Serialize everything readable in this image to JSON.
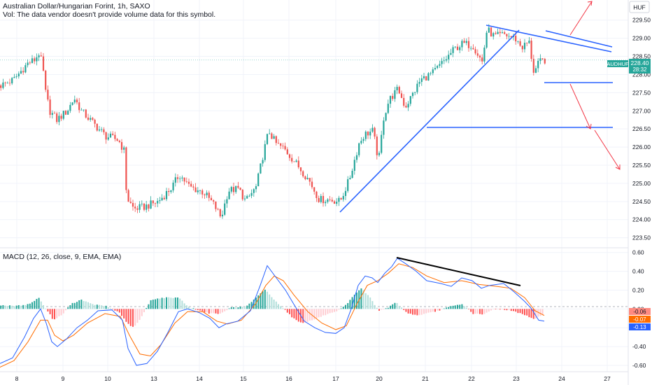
{
  "header": {
    "title": "Australian Dollar/Hungarian Forint, 1h, SAXO",
    "vol_note": "Vol: The data vendor doesn't provide volume data for this symbol."
  },
  "currency_button": "HUF",
  "price_badge": {
    "symbol": "AUDHUF",
    "price": "228.40",
    "countdown": "28:32"
  },
  "indicator_label": "MACD (12, 26, close, 9, EMA, EMA)",
  "macd_badges": [
    "-0.06",
    "-0.07",
    "-0.13"
  ],
  "colors": {
    "up": "#26a69a",
    "down": "#ef5350",
    "drawing": "#2962ff",
    "macd": "#2962ff",
    "signal": "#ff6d00",
    "hist_up_strong": "#26a69a",
    "hist_up_weak": "#b2dfdb",
    "hist_down_strong": "#ff5252",
    "hist_down_weak": "#ffcdd2",
    "divergence": "#000000"
  },
  "chart_data": [
    {
      "type": "candlestick",
      "title": "Australian Dollar/Hungarian Forint, 1h, SAXO",
      "x_ticks": [
        "8",
        "9",
        "10",
        "13",
        "14",
        "15",
        "16",
        "17",
        "20",
        "21",
        "22",
        "23",
        "24",
        "27"
      ],
      "y_ticks": [
        "223.50",
        "224.00",
        "224.50",
        "225.00",
        "225.50",
        "226.00",
        "226.50",
        "227.00",
        "227.50",
        "228.00",
        "228.50",
        "229.00",
        "229.50"
      ],
      "ylim": [
        223.3,
        229.9
      ],
      "last_price": 228.4,
      "close_path": [
        [
          0,
          227.7
        ],
        [
          18,
          227.85
        ],
        [
          38,
          228.3
        ],
        [
          48,
          228.4
        ],
        [
          55,
          228.6
        ],
        [
          60,
          228.2
        ],
        [
          64,
          227.5
        ],
        [
          70,
          227.0
        ],
        [
          80,
          226.75
        ],
        [
          95,
          227.0
        ],
        [
          105,
          227.35
        ],
        [
          115,
          227.0
        ],
        [
          130,
          226.7
        ],
        [
          150,
          226.3
        ],
        [
          168,
          226.2
        ],
        [
          176,
          225.9
        ],
        [
          180,
          224.6
        ],
        [
          190,
          224.3
        ],
        [
          205,
          224.35
        ],
        [
          225,
          224.5
        ],
        [
          245,
          224.9
        ],
        [
          255,
          225.25
        ],
        [
          270,
          224.9
        ],
        [
          290,
          224.75
        ],
        [
          305,
          224.4
        ],
        [
          315,
          224.05
        ],
        [
          325,
          224.8
        ],
        [
          340,
          224.85
        ],
        [
          350,
          224.5
        ],
        [
          365,
          224.9
        ],
        [
          375,
          225.8
        ],
        [
          383,
          226.45
        ],
        [
          393,
          226.1
        ],
        [
          405,
          225.95
        ],
        [
          420,
          225.6
        ],
        [
          440,
          225.1
        ],
        [
          455,
          224.55
        ],
        [
          470,
          224.55
        ],
        [
          485,
          224.5
        ],
        [
          498,
          225.1
        ],
        [
          505,
          225.6
        ],
        [
          512,
          226.1
        ],
        [
          520,
          226.35
        ],
        [
          532,
          226.45
        ],
        [
          540,
          225.6
        ],
        [
          547,
          226.8
        ],
        [
          555,
          227.3
        ],
        [
          568,
          227.6
        ],
        [
          578,
          227.1
        ],
        [
          590,
          227.5
        ],
        [
          600,
          227.85
        ],
        [
          618,
          228.05
        ],
        [
          635,
          228.4
        ],
        [
          648,
          228.7
        ],
        [
          660,
          228.85
        ],
        [
          675,
          228.8
        ],
        [
          688,
          228.35
        ],
        [
          695,
          229.25
        ],
        [
          705,
          229.05
        ],
        [
          720,
          229.1
        ],
        [
          735,
          229.0
        ],
        [
          745,
          228.75
        ],
        [
          755,
          228.9
        ],
        [
          762,
          228.05
        ],
        [
          770,
          228.35
        ],
        [
          778,
          228.4
        ]
      ]
    },
    {
      "type": "line",
      "title": "MACD (12, 26, close, 9, EMA, EMA)",
      "y_ticks": [
        "0.60",
        "0.40",
        "0.20",
        "0.00",
        "-0.20",
        "-0.40",
        "-0.60"
      ],
      "ylim": [
        -0.66,
        0.62
      ],
      "series": [
        {
          "points": [
            [
              0,
              -0.58
            ],
            [
              18,
              -0.52
            ],
            [
              35,
              -0.3
            ],
            [
              48,
              -0.1
            ],
            [
              58,
              0.0
            ],
            [
              66,
              -0.15
            ],
            [
              74,
              -0.35
            ],
            [
              82,
              -0.4
            ],
            [
              95,
              -0.32
            ],
            [
              110,
              -0.2
            ],
            [
              125,
              -0.12
            ],
            [
              140,
              -0.02
            ],
            [
              160,
              -0.01
            ],
            [
              175,
              -0.12
            ],
            [
              183,
              -0.42
            ],
            [
              195,
              -0.6
            ],
            [
              210,
              -0.58
            ],
            [
              225,
              -0.45
            ],
            [
              240,
              -0.25
            ],
            [
              255,
              -0.03
            ],
            [
              268,
              0.0
            ],
            [
              285,
              -0.04
            ],
            [
              300,
              -0.1
            ],
            [
              313,
              -0.2
            ],
            [
              323,
              -0.16
            ],
            [
              340,
              -0.13
            ],
            [
              358,
              -0.02
            ],
            [
              372,
              0.25
            ],
            [
              382,
              0.46
            ],
            [
              395,
              0.33
            ],
            [
              408,
              0.2
            ],
            [
              420,
              0.05
            ],
            [
              435,
              -0.13
            ],
            [
              450,
              -0.2
            ],
            [
              465,
              -0.25
            ],
            [
              480,
              -0.26
            ],
            [
              492,
              -0.2
            ],
            [
              502,
              0.0
            ],
            [
              512,
              0.25
            ],
            [
              522,
              0.35
            ],
            [
              532,
              0.33
            ],
            [
              540,
              0.28
            ],
            [
              550,
              0.38
            ],
            [
              560,
              0.45
            ],
            [
              568,
              0.54
            ],
            [
              580,
              0.48
            ],
            [
              595,
              0.4
            ],
            [
              610,
              0.3
            ],
            [
              630,
              0.27
            ],
            [
              645,
              0.24
            ],
            [
              660,
              0.33
            ],
            [
              675,
              0.3
            ],
            [
              688,
              0.22
            ],
            [
              700,
              0.25
            ],
            [
              720,
              0.27
            ],
            [
              735,
              0.18
            ],
            [
              750,
              0.08
            ],
            [
              760,
              0.0
            ],
            [
              770,
              -0.12
            ],
            [
              778,
              -0.13
            ]
          ]
        },
        {
          "points": [
            [
              0,
              -0.62
            ],
            [
              20,
              -0.55
            ],
            [
              40,
              -0.35
            ],
            [
              58,
              -0.12
            ],
            [
              68,
              -0.12
            ],
            [
              78,
              -0.28
            ],
            [
              90,
              -0.34
            ],
            [
              105,
              -0.28
            ],
            [
              125,
              -0.15
            ],
            [
              150,
              -0.05
            ],
            [
              172,
              -0.08
            ],
            [
              185,
              -0.28
            ],
            [
              200,
              -0.48
            ],
            [
              215,
              -0.5
            ],
            [
              230,
              -0.38
            ],
            [
              250,
              -0.15
            ],
            [
              268,
              -0.03
            ],
            [
              290,
              -0.03
            ],
            [
              310,
              -0.13
            ],
            [
              325,
              -0.16
            ],
            [
              345,
              -0.12
            ],
            [
              365,
              0.05
            ],
            [
              380,
              0.25
            ],
            [
              392,
              0.35
            ],
            [
              405,
              0.3
            ],
            [
              420,
              0.15
            ],
            [
              440,
              -0.03
            ],
            [
              460,
              -0.15
            ],
            [
              480,
              -0.22
            ],
            [
              495,
              -0.18
            ],
            [
              510,
              0.05
            ],
            [
              525,
              0.25
            ],
            [
              540,
              0.3
            ],
            [
              555,
              0.38
            ],
            [
              570,
              0.48
            ],
            [
              590,
              0.44
            ],
            [
              610,
              0.35
            ],
            [
              635,
              0.28
            ],
            [
              660,
              0.3
            ],
            [
              685,
              0.26
            ],
            [
              710,
              0.24
            ],
            [
              730,
              0.22
            ],
            [
              750,
              0.12
            ],
            [
              765,
              -0.02
            ],
            [
              778,
              -0.07
            ]
          ]
        }
      ],
      "histogram": [
        [
          0,
          0.04
        ],
        [
          20,
          0.03
        ],
        [
          40,
          0.05
        ],
        [
          55,
          0.12
        ],
        [
          63,
          0.01
        ],
        [
          68,
          -0.03
        ],
        [
          75,
          -0.12
        ],
        [
          88,
          -0.06
        ],
        [
          100,
          0.05
        ],
        [
          115,
          0.1
        ],
        [
          130,
          0.05
        ],
        [
          150,
          0.03
        ],
        [
          170,
          -0.04
        ],
        [
          180,
          -0.15
        ],
        [
          190,
          -0.2
        ],
        [
          200,
          -0.1
        ],
        [
          215,
          0.1
        ],
        [
          235,
          0.12
        ],
        [
          255,
          0.12
        ],
        [
          268,
          0.02
        ],
        [
          285,
          -0.02
        ],
        [
          300,
          -0.05
        ],
        [
          315,
          -0.05
        ],
        [
          330,
          0.02
        ],
        [
          350,
          0.02
        ],
        [
          365,
          0.12
        ],
        [
          378,
          0.21
        ],
        [
          390,
          0.1
        ],
        [
          405,
          0.0
        ],
        [
          418,
          -0.1
        ],
        [
          430,
          -0.15
        ],
        [
          445,
          -0.12
        ],
        [
          465,
          -0.06
        ],
        [
          480,
          -0.03
        ],
        [
          495,
          0.05
        ],
        [
          505,
          0.15
        ],
        [
          515,
          0.22
        ],
        [
          528,
          0.12
        ],
        [
          540,
          -0.02
        ],
        [
          555,
          0.02
        ],
        [
          565,
          0.07
        ],
        [
          580,
          -0.04
        ],
        [
          595,
          -0.07
        ],
        [
          620,
          -0.03
        ],
        [
          645,
          0.03
        ],
        [
          660,
          0.05
        ],
        [
          675,
          -0.05
        ],
        [
          690,
          -0.06
        ],
        [
          705,
          0.0
        ],
        [
          725,
          -0.01
        ],
        [
          745,
          -0.05
        ],
        [
          762,
          -0.11
        ],
        [
          775,
          -0.06
        ]
      ]
    }
  ]
}
